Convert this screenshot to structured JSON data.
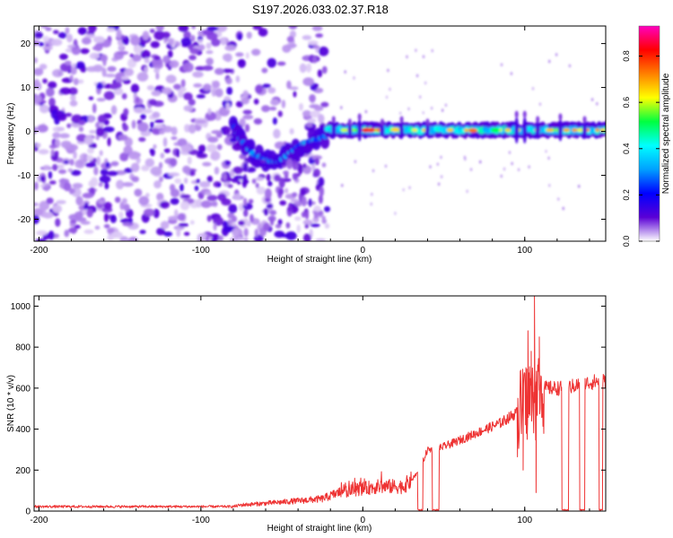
{
  "title": "S197.2026.033.02.37.R18",
  "chart_data": [
    {
      "type": "heatmap",
      "xlabel": "Height of straight line (km)",
      "ylabel": "Frequency (Hz)",
      "xlim": [
        -203,
        150
      ],
      "ylim": [
        -25,
        24
      ],
      "xticks": [
        -200,
        -100,
        0,
        100
      ],
      "yticks": [
        -20,
        -10,
        0,
        10,
        20
      ],
      "colorbar": {
        "label": "Normalized spectral amplitude",
        "range": [
          0,
          0.93
        ],
        "ticks": [
          "0.0",
          "0.2",
          "0.4",
          "0.6",
          "0.8"
        ],
        "tick_values": [
          0.0,
          0.2,
          0.4,
          0.6,
          0.8
        ],
        "colormap": [
          "#ffffff",
          "#5a00d6",
          "#0000ff",
          "#00a0ff",
          "#00ffff",
          "#00ff40",
          "#ffff00",
          "#ff8000",
          "#ff0000",
          "#ff00c0"
        ]
      },
      "features": {
        "noise_region_km": [
          -203,
          -22
        ],
        "dip_track_km_hz": [
          [
            -80,
            1.5
          ],
          [
            -75,
            -2
          ],
          [
            -68,
            -5
          ],
          [
            -60,
            -6.5
          ],
          [
            -52,
            -7
          ],
          [
            -45,
            -5
          ],
          [
            -38,
            -3
          ],
          [
            -30,
            -2
          ],
          [
            -22,
            -1
          ]
        ],
        "steady_band_km": [
          -22,
          150
        ],
        "steady_band_hz": 0.3
      }
    },
    {
      "type": "line",
      "xlabel": "Height of straight line (km)",
      "ylabel": "SNR (10 * v/v)",
      "xlim": [
        -203,
        150
      ],
      "ylim": [
        0,
        1050
      ],
      "xticks": [
        -200,
        -100,
        0,
        100
      ],
      "yticks": [
        0,
        200,
        400,
        600,
        800,
        1000
      ],
      "color": "#ee3333",
      "anchors": [
        [
          -203,
          22
        ],
        [
          -80,
          22
        ],
        [
          -75,
          30
        ],
        [
          -60,
          38
        ],
        [
          -40,
          50
        ],
        [
          -25,
          60
        ],
        [
          -15,
          90
        ],
        [
          0,
          110
        ],
        [
          10,
          120
        ],
        [
          25,
          120
        ],
        [
          30,
          150
        ],
        [
          35,
          200
        ],
        [
          40,
          300
        ],
        [
          45,
          300
        ],
        [
          55,
          330
        ],
        [
          70,
          380
        ],
        [
          85,
          430
        ],
        [
          95,
          480
        ],
        [
          100,
          540
        ],
        [
          105,
          560
        ],
        [
          110,
          600
        ],
        [
          118,
          600
        ],
        [
          125,
          600
        ],
        [
          135,
          620
        ],
        [
          150,
          640
        ]
      ],
      "dropouts_km": [
        [
          34,
          37
        ],
        [
          43,
          47
        ],
        [
          123,
          127
        ],
        [
          134,
          137
        ],
        [
          146,
          148
        ]
      ],
      "spikes_km_value": [
        [
          106,
          1050
        ],
        [
          102,
          880
        ],
        [
          109,
          850
        ],
        [
          104,
          780
        ],
        [
          107,
          90
        ],
        [
          99,
          200
        ]
      ]
    }
  ]
}
